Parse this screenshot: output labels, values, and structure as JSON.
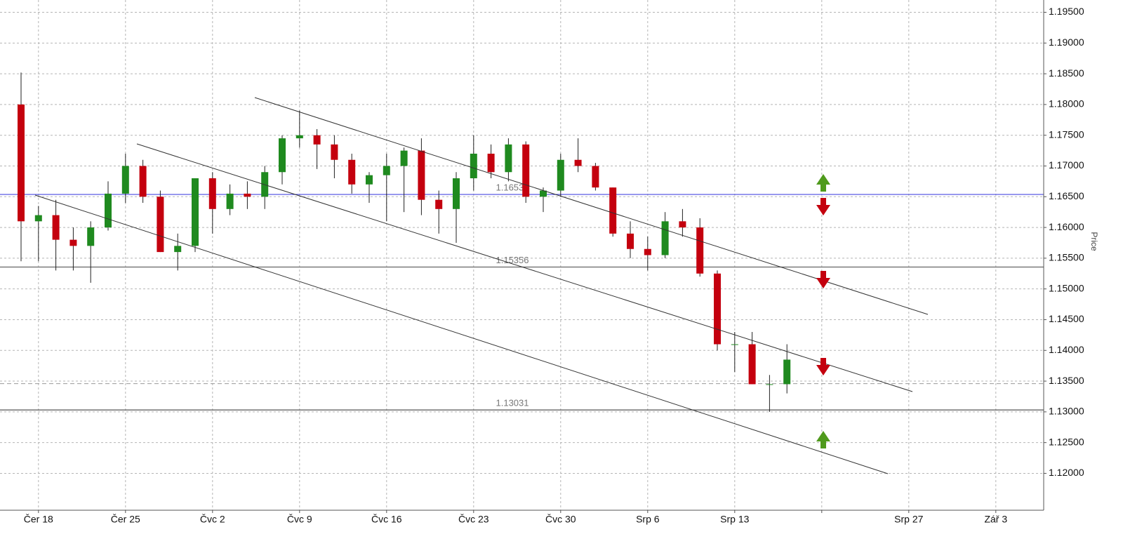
{
  "chart_data": {
    "type": "candlestick",
    "y_axis_label": "Price",
    "categories": [
      null,
      "Čer 18",
      null,
      null,
      null,
      null,
      "Čer 25",
      null,
      null,
      null,
      null,
      "Čvc 2",
      null,
      null,
      null,
      null,
      "Čvc 9",
      null,
      null,
      null,
      null,
      "Čvc 16",
      null,
      null,
      null,
      null,
      "Čvc 23",
      null,
      null,
      null,
      null,
      "Čvc 30",
      null,
      null,
      null,
      null,
      "Srp 6",
      null,
      null,
      null,
      null,
      "Srp 13",
      null,
      null,
      null,
      null,
      null,
      null,
      null,
      null,
      null,
      "Srp 27",
      null,
      null,
      null,
      null,
      "Zář 3",
      null,
      null
    ],
    "open": [
      1.18,
      1.161,
      1.162,
      1.158,
      1.157,
      1.16,
      1.1655,
      1.17,
      1.165,
      1.156,
      1.157,
      1.168,
      1.163,
      1.1655,
      1.165,
      1.169,
      1.1745,
      1.175,
      1.1735,
      1.171,
      1.167,
      1.1685,
      1.17,
      1.1725,
      1.1645,
      1.163,
      1.168,
      1.172,
      1.169,
      1.1735,
      1.165,
      1.166,
      1.171,
      1.17,
      1.1665,
      1.159,
      1.1565,
      1.1555,
      1.161,
      1.16,
      1.1525,
      1.141,
      1.141,
      1.1345,
      1.1345,
      null,
      null,
      null,
      null,
      null,
      null,
      null,
      null,
      null,
      null,
      null,
      null,
      null,
      null
    ],
    "high": [
      1.1852,
      1.1635,
      1.1645,
      1.16,
      1.161,
      1.1675,
      1.172,
      1.171,
      1.166,
      1.159,
      1.168,
      1.169,
      1.167,
      1.1675,
      1.17,
      1.175,
      1.179,
      1.176,
      1.175,
      1.172,
      1.169,
      1.172,
      1.173,
      1.1745,
      1.166,
      1.169,
      1.175,
      1.1735,
      1.1745,
      1.174,
      1.1665,
      1.172,
      1.1745,
      1.1705,
      1.1665,
      1.161,
      1.1585,
      1.1625,
      1.163,
      1.1615,
      1.153,
      1.143,
      1.143,
      1.136,
      1.141,
      null,
      null,
      null,
      null,
      null,
      null,
      null,
      null,
      null,
      null,
      null,
      null,
      null,
      null
    ],
    "low": [
      1.1545,
      1.1545,
      1.153,
      1.153,
      1.151,
      1.1595,
      1.164,
      1.164,
      1.156,
      1.153,
      1.156,
      1.159,
      1.162,
      1.163,
      1.163,
      1.167,
      1.173,
      1.1695,
      1.168,
      1.1655,
      1.164,
      1.161,
      1.1625,
      1.162,
      1.159,
      1.1575,
      1.166,
      1.168,
      1.1675,
      1.164,
      1.1625,
      1.165,
      1.169,
      1.166,
      1.1585,
      1.155,
      1.153,
      1.155,
      1.1585,
      1.152,
      1.14,
      1.1365,
      1.1345,
      1.13,
      1.133,
      null,
      null,
      null,
      null,
      null,
      null,
      null,
      null,
      null,
      null,
      null,
      null,
      null,
      null
    ],
    "close": [
      1.161,
      1.162,
      1.158,
      1.157,
      1.16,
      1.1655,
      1.17,
      1.165,
      1.156,
      1.157,
      1.168,
      1.163,
      1.1655,
      1.165,
      1.169,
      1.1745,
      1.175,
      1.1735,
      1.171,
      1.167,
      1.1685,
      1.17,
      1.1725,
      1.1645,
      1.163,
      1.168,
      1.172,
      1.169,
      1.1735,
      1.165,
      1.166,
      1.171,
      1.17,
      1.1665,
      1.159,
      1.1565,
      1.1555,
      1.161,
      1.16,
      1.1525,
      1.141,
      1.141,
      1.1345,
      1.1345,
      1.1385,
      null,
      null,
      null,
      null,
      null,
      null,
      null,
      null,
      null,
      null,
      null,
      null,
      null,
      null
    ],
    "up_color": "#1f8a1f",
    "down_color": "#c4000e",
    "ylim": [
      1.114,
      1.197
    ],
    "yticks": [
      {
        "value": 1.12,
        "label": "1.12000"
      },
      {
        "value": 1.125,
        "label": "1.12500"
      },
      {
        "value": 1.13,
        "label": "1.13000"
      },
      {
        "value": 1.135,
        "label": "1.13500"
      },
      {
        "value": 1.14,
        "label": "1.14000"
      },
      {
        "value": 1.145,
        "label": "1.14500"
      },
      {
        "value": 1.15,
        "label": "1.15000"
      },
      {
        "value": 1.155,
        "label": "1.15500"
      },
      {
        "value": 1.16,
        "label": "1.16000"
      },
      {
        "value": 1.165,
        "label": "1.16500"
      },
      {
        "value": 1.17,
        "label": "1.17000"
      },
      {
        "value": 1.175,
        "label": "1.17500"
      },
      {
        "value": 1.18,
        "label": "1.18000"
      },
      {
        "value": 1.185,
        "label": "1.18500"
      },
      {
        "value": 1.19,
        "label": "1.19000"
      },
      {
        "value": 1.195,
        "label": "1.19500"
      }
    ],
    "grid": true,
    "levels": [
      {
        "value": 1.16537,
        "color": "#4a4ae0"
      },
      {
        "value": 1.15356,
        "color": "#666666"
      },
      {
        "value": 1.13031,
        "color": "#555555"
      }
    ],
    "current_price": 1.1346
  }
}
